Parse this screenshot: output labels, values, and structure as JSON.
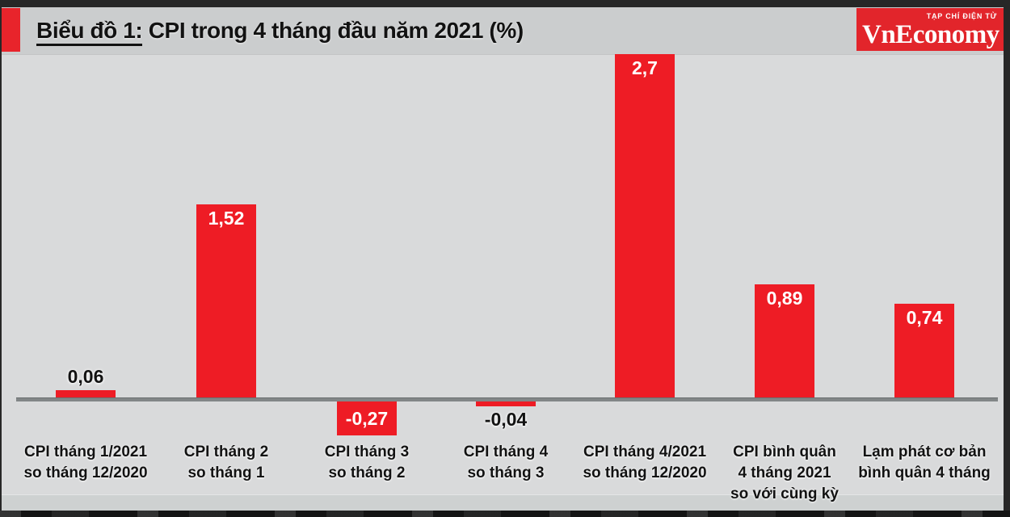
{
  "header": {
    "title_prefix": "Biểu đồ 1:",
    "title_rest": " CPI trong 4 tháng đầu năm 2021 (%)"
  },
  "logo": {
    "tagline": "TẠP CHÍ ĐIỆN TỬ",
    "name": "VnEconomy"
  },
  "colors": {
    "bar_red": "#ee1c25",
    "logo_red": "#e2252b",
    "axis_gray": "#828687",
    "header_bg": "#cbcdce",
    "page_bg": "#d9dadb"
  },
  "chart_data": {
    "type": "bar",
    "title": "Biểu đồ 1: CPI trong 4 tháng đầu năm 2021 (%)",
    "unit": "%",
    "grid": false,
    "legend": false,
    "ylim": [
      -0.4,
      2.9
    ],
    "bar_color": "#ee1c25",
    "categories": [
      "CPI tháng 1/2021\nso tháng 12/2020",
      "CPI tháng 2\nso tháng 1",
      "CPI tháng 3\nso tháng 2",
      "CPI tháng 4\nso tháng 3",
      "CPI tháng 4/2021\nso tháng 12/2020",
      "CPI bình quân\n4 tháng 2021\nso với cùng kỳ",
      "Lạm phát cơ bản\nbình quân 4 tháng"
    ],
    "values": [
      0.06,
      1.52,
      -0.27,
      -0.04,
      2.7,
      0.89,
      0.74
    ],
    "value_labels": [
      "0,06",
      "1,52",
      "-0,27",
      "-0,04",
      "2,7",
      "0,89",
      "0,74"
    ],
    "value_label_positions": [
      "above",
      "inside",
      "inside",
      "below",
      "inside",
      "inside",
      "inside"
    ]
  }
}
